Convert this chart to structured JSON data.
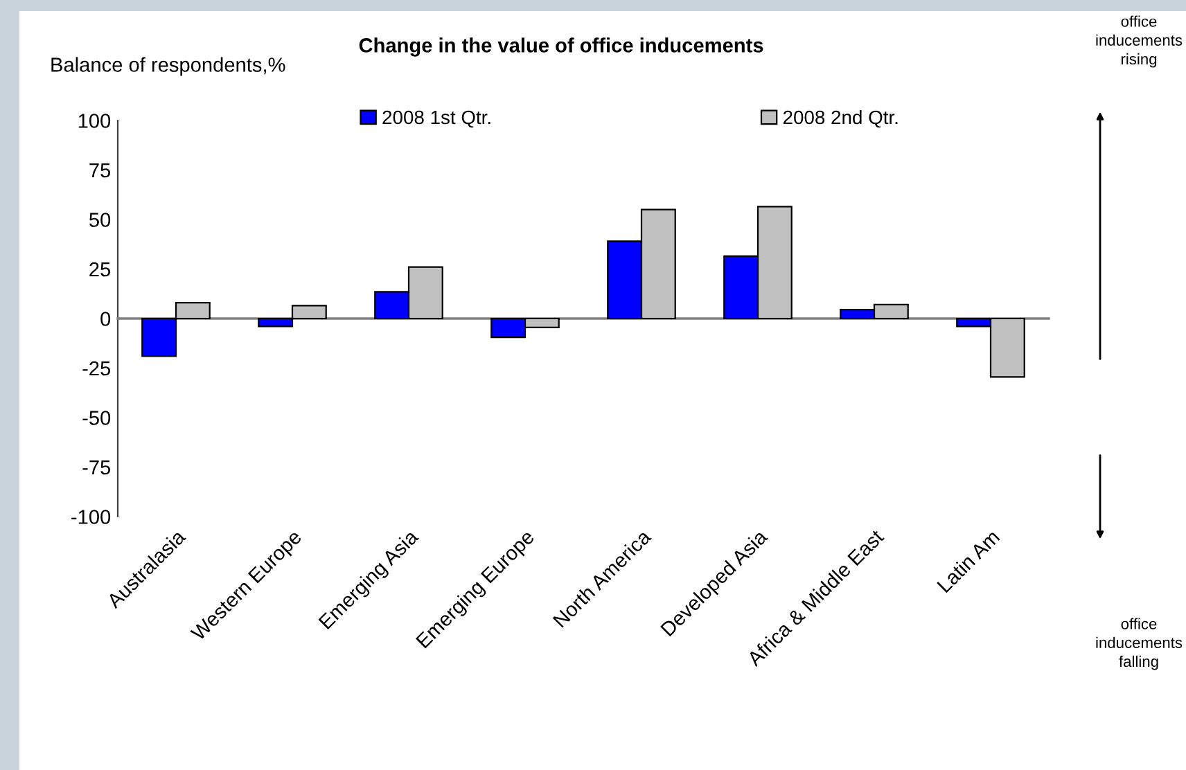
{
  "chart_data": {
    "type": "bar",
    "title": "Change in the value of office inducements",
    "ylabel": "Balance of respondents,%",
    "categories": [
      "Australasia",
      "Western Europe",
      "Emerging Asia",
      "Emerging Europe",
      "North America",
      "Developed Asia",
      "Africa & Middle East",
      "Latin Am"
    ],
    "series": [
      {
        "name": "2008 1st Qtr.",
        "color": "#0000ff",
        "values": [
          -19,
          -4,
          13.5,
          -9.5,
          39,
          31.5,
          4.5,
          -4
        ]
      },
      {
        "name": "2008 2nd Qtr.",
        "color": "#c0c0c0",
        "values": [
          8,
          6.5,
          26,
          -4.5,
          55,
          56.5,
          7,
          -29.5
        ]
      }
    ],
    "ylim": [
      -100,
      100
    ],
    "yticks": [
      -100,
      -75,
      -50,
      -25,
      0,
      25,
      50,
      75,
      100
    ],
    "legend": "top",
    "annotations": [
      "office inducements rising",
      "office inducements falling"
    ]
  }
}
